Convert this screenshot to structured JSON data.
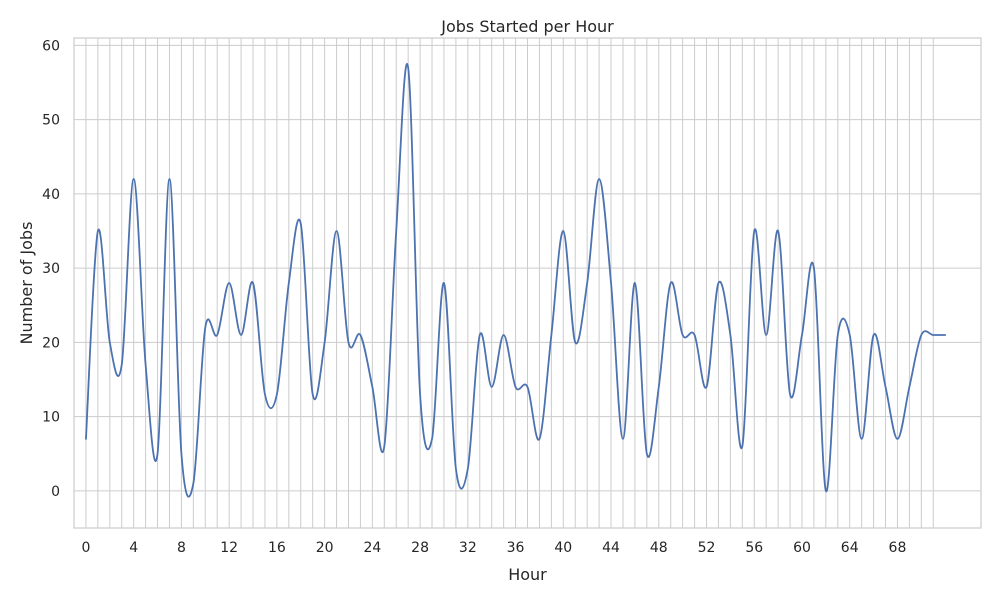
{
  "chart_data": {
    "type": "line",
    "title": "Jobs Started per Hour",
    "xlabel": "Hour",
    "ylabel": "Number of Jobs",
    "xlim": [
      -1.0,
      75.0
    ],
    "ylim": [
      -5,
      61
    ],
    "x_ticks": [
      0,
      4,
      8,
      12,
      16,
      20,
      24,
      28,
      32,
      36,
      40,
      44,
      48,
      52,
      56,
      60,
      64,
      68
    ],
    "x_tick_labels": [
      "0",
      "4",
      "8",
      "12",
      "16",
      "20",
      "24",
      "28",
      "32",
      "36",
      "40",
      "44",
      "48",
      "52",
      "56",
      "60",
      "64",
      "68"
    ],
    "x_gridlines": [
      0,
      1,
      2,
      3,
      4,
      5,
      6,
      7,
      8,
      9,
      10,
      11,
      12,
      13,
      14,
      15,
      16,
      17,
      18,
      19,
      20,
      21,
      22,
      23,
      24,
      25,
      26,
      27,
      28,
      29,
      30,
      31,
      32,
      33,
      34,
      35,
      36,
      37,
      38,
      39,
      40,
      41,
      42,
      43,
      44,
      45,
      46,
      47,
      48,
      49,
      50,
      51,
      52,
      53,
      54,
      55,
      56,
      57,
      58,
      59,
      60,
      61,
      62,
      63,
      64,
      65,
      66,
      67,
      68,
      69,
      70,
      71
    ],
    "y_ticks": [
      0,
      10,
      20,
      30,
      40,
      50,
      60
    ],
    "y_tick_labels": [
      "0",
      "10",
      "20",
      "30",
      "40",
      "50",
      "60"
    ],
    "grid": true,
    "line_color": "#4c72b0",
    "grid_color": "#cccccc",
    "series": [
      {
        "x": [
          0,
          1,
          2,
          3,
          4,
          5,
          6,
          7,
          8,
          9,
          10,
          11,
          12,
          13,
          14,
          15,
          16,
          17,
          18,
          19,
          20,
          21,
          22,
          23,
          24,
          25,
          26,
          27,
          28,
          29,
          30,
          31,
          32,
          33,
          34,
          35,
          36,
          37,
          38,
          39,
          40,
          41,
          42,
          43,
          44,
          45,
          46,
          47,
          48,
          49,
          50,
          51,
          52,
          53,
          54,
          55,
          56,
          57,
          58,
          59,
          60,
          61,
          62,
          63,
          64,
          65,
          66,
          67,
          68,
          69,
          70,
          71,
          72
        ],
        "values": [
          7,
          35,
          20,
          17,
          42,
          17,
          5,
          42,
          5,
          1,
          22,
          21,
          28,
          21,
          28,
          13,
          13,
          28,
          36,
          13,
          20,
          35,
          20,
          21,
          14,
          6,
          35,
          57,
          13,
          7,
          28,
          3,
          3,
          21,
          14,
          21,
          14,
          14,
          7,
          21,
          35,
          20,
          28,
          42,
          28,
          7,
          28,
          5,
          14,
          28,
          21,
          21,
          14,
          28,
          21,
          6,
          35,
          21,
          35,
          13,
          21,
          30,
          0,
          21,
          21,
          7,
          21,
          14,
          7,
          14,
          21,
          21,
          21
        ]
      }
    ]
  }
}
